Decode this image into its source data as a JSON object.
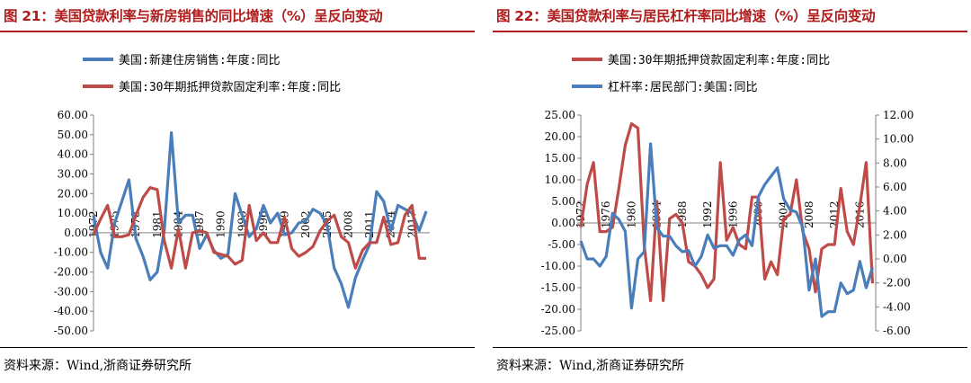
{
  "panels": [
    {
      "title": "图 21：美国贷款利率与新房销售的同比增速（%）呈反向变动",
      "source": "资料来源：Wind,浙商证券研究所",
      "colors": {
        "title": "#b01c1c",
        "blue": "#4a7ebb",
        "red": "#be4b48"
      }
    },
    {
      "title": "图 22：美国贷款利率与居民杠杆率同比增速（%）呈反向变动",
      "source": "资料来源：Wind,浙商证券研究所"
    }
  ],
  "chart_data": [
    {
      "type": "line",
      "title": "",
      "legend_position": "top",
      "x_ticks": [
        "1972",
        "1975",
        "1978",
        "1981",
        "1984",
        "1987",
        "1990",
        "1993",
        "1996",
        "1999",
        "2002",
        "2005",
        "2008",
        "2011",
        "2014",
        "2017"
      ],
      "y_ticks": [
        "60.00",
        "50.00",
        "40.00",
        "30.00",
        "20.00",
        "10.00",
        "0.00",
        "-10.00",
        "-20.00",
        "-30.00",
        "-40.00",
        "-50.00"
      ],
      "ylim": [
        -50,
        60
      ],
      "grid": false,
      "series": [
        {
          "name": "美国:新建住房销售:年度:同比",
          "color": "#4a7ebb",
          "x": [
            1972,
            1973,
            1974,
            1975,
            1976,
            1977,
            1978,
            1979,
            1980,
            1981,
            1982,
            1983,
            1984,
            1985,
            1986,
            1987,
            1988,
            1989,
            1990,
            1991,
            1992,
            1993,
            1994,
            1995,
            1996,
            1997,
            1998,
            1999,
            2000,
            2001,
            2002,
            2003,
            2004,
            2005,
            2006,
            2007,
            2008,
            2009,
            2010,
            2011,
            2012,
            2013,
            2014,
            2015,
            2016,
            2017,
            2018,
            2019
          ],
          "values": [
            9,
            -10,
            -18,
            5,
            16,
            27,
            -3,
            -12,
            -24,
            -20,
            1,
            51,
            5,
            9,
            9,
            -8,
            -1,
            -9,
            -13,
            -11,
            20,
            9,
            -2,
            2,
            14,
            5,
            10,
            -1,
            0,
            5,
            6,
            12,
            10,
            4,
            -18,
            -26,
            -38,
            -23,
            -14,
            -6,
            21,
            16,
            1,
            14,
            12,
            10,
            1,
            11
          ]
        },
        {
          "name": "美国:30年期抵押贷款固定利率:年度:同比",
          "color": "#be4b48",
          "x": [
            1972,
            1973,
            1974,
            1975,
            1976,
            1977,
            1978,
            1979,
            1980,
            1981,
            1982,
            1983,
            1984,
            1985,
            1986,
            1987,
            1988,
            1989,
            1990,
            1991,
            1992,
            1993,
            1994,
            1995,
            1996,
            1997,
            1998,
            1999,
            2000,
            2001,
            2002,
            2003,
            2004,
            2005,
            2006,
            2007,
            2008,
            2009,
            2010,
            2011,
            2012,
            2013,
            2014,
            2015,
            2016,
            2017,
            2018,
            2019
          ],
          "values": [
            -1,
            7,
            14,
            -2,
            -2,
            -1,
            9,
            18,
            23,
            22,
            -4,
            -18,
            2,
            -18,
            0,
            1,
            0,
            -10,
            -11,
            -12,
            -16,
            -14,
            14,
            -4,
            0,
            -5,
            -5,
            8,
            -8,
            -12,
            -10,
            -7,
            1,
            6,
            9,
            -2,
            -5,
            -18,
            -9,
            -5,
            -5,
            8,
            -6,
            -5,
            9,
            14,
            -13,
            -13
          ]
        }
      ]
    },
    {
      "type": "line",
      "title": "",
      "legend_position": "top",
      "x_ticks": [
        "1972",
        "1976",
        "1980",
        "1984",
        "1988",
        "1992",
        "1996",
        "2000",
        "2004",
        "2008",
        "2012",
        "2016"
      ],
      "y_ticks_left": [
        "25.00",
        "20.00",
        "15.00",
        "10.00",
        "5.00",
        "0.00",
        "-5.00",
        "-10.00",
        "-15.00",
        "-20.00",
        "-25.00"
      ],
      "y_ticks_right": [
        "12.00",
        "10.00",
        "8.00",
        "6.00",
        "4.00",
        "2.00",
        "0.00",
        "-2.00",
        "-4.00",
        "-6.00"
      ],
      "ylim_left": [
        -25,
        25
      ],
      "ylim_right": [
        -6,
        12
      ],
      "grid": false,
      "series": [
        {
          "name": "美国:30年期抵押贷款固定利率:年度:同比",
          "axis": "left",
          "color": "#be4b48",
          "x": [
            1972,
            1973,
            1974,
            1975,
            1976,
            1977,
            1978,
            1979,
            1980,
            1981,
            1982,
            1983,
            1984,
            1985,
            1986,
            1987,
            1988,
            1989,
            1990,
            1991,
            1992,
            1993,
            1994,
            1995,
            1996,
            1997,
            1998,
            1999,
            2000,
            2001,
            2002,
            2003,
            2004,
            2005,
            2006,
            2007,
            2008,
            2009,
            2010,
            2011,
            2012,
            2013,
            2014,
            2015,
            2016,
            2017,
            2018
          ],
          "values": [
            -1,
            9,
            14,
            -2,
            -2,
            -1,
            8,
            18,
            23,
            22,
            -5,
            -18,
            5,
            -18,
            1,
            2,
            0,
            -9,
            -10,
            -12,
            -15,
            -13,
            14,
            -4,
            -1,
            -5,
            -6,
            6,
            6,
            -13,
            -9,
            -12,
            1,
            2,
            10,
            -2,
            -6,
            -16,
            -6,
            -5,
            -5,
            8,
            -2,
            -5,
            4,
            14,
            -14
          ]
        },
        {
          "name": "杠杆率:居民部门:美国:同比",
          "axis": "right",
          "color": "#4a7ebb",
          "x": [
            1972,
            1973,
            1974,
            1975,
            1976,
            1977,
            1978,
            1979,
            1980,
            1981,
            1982,
            1983,
            1984,
            1985,
            1986,
            1987,
            1988,
            1989,
            1990,
            1991,
            1992,
            1993,
            1994,
            1995,
            1996,
            1997,
            1998,
            1999,
            2000,
            2001,
            2002,
            2003,
            2004,
            2005,
            2006,
            2007,
            2008,
            2009,
            2010,
            2011,
            2012,
            2013,
            2014,
            2015,
            2016,
            2017,
            2018
          ],
          "values": [
            1.5,
            0,
            0,
            -0.6,
            0.2,
            3.8,
            3.3,
            2.3,
            -4.1,
            0,
            0.6,
            9.6,
            2.6,
            1.9,
            1.9,
            1.1,
            0.6,
            0.7,
            -0.6,
            0.2,
            2,
            0.9,
            1.1,
            1.1,
            0.3,
            1.6,
            2,
            1.1,
            5.2,
            6.2,
            6.9,
            7.6,
            5,
            4.1,
            3.9,
            2.6,
            -2.6,
            0,
            -4.8,
            -4.4,
            -4.4,
            -2,
            -2.9,
            -2.6,
            -0.2,
            -2.4,
            -0.7
          ]
        }
      ]
    }
  ]
}
